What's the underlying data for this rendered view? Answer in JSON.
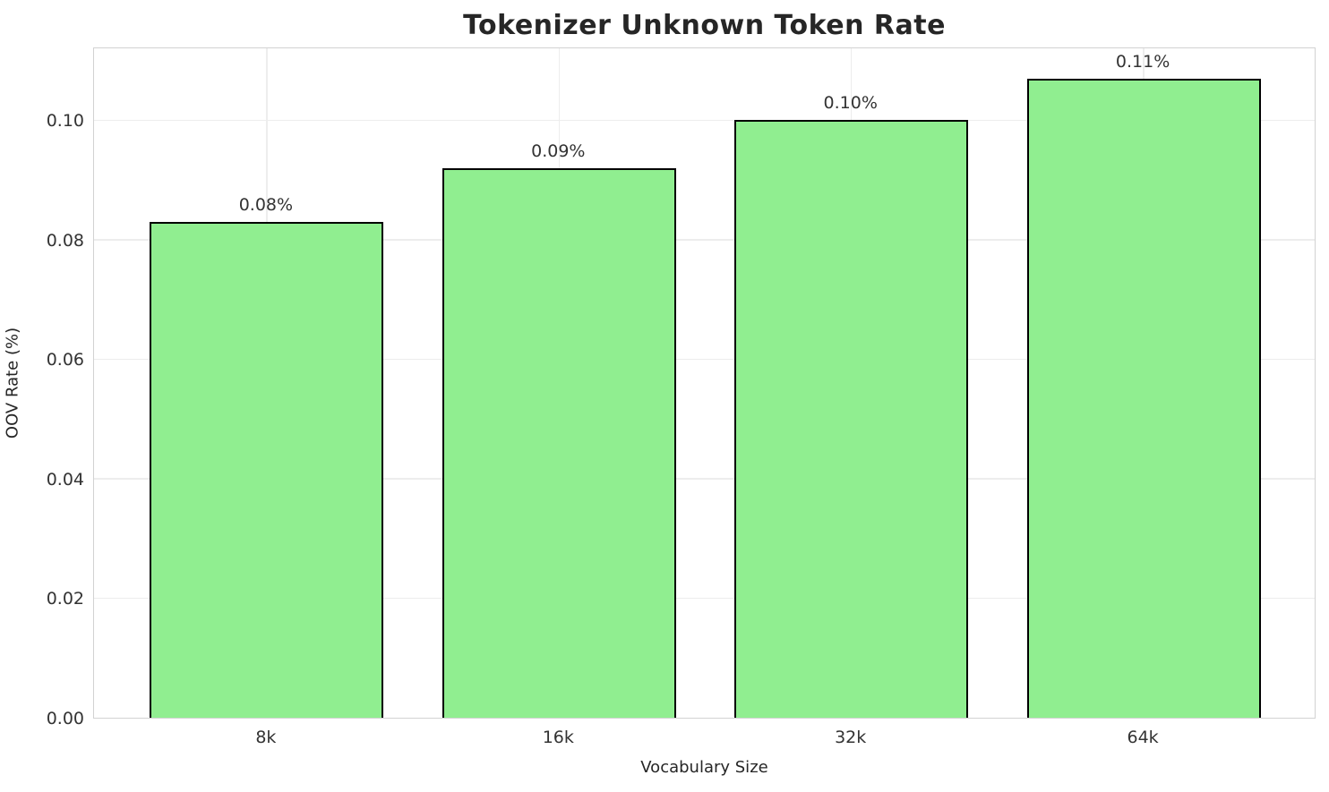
{
  "chart_data": {
    "type": "bar",
    "title": "Tokenizer Unknown Token Rate",
    "xlabel": "Vocabulary Size",
    "ylabel": "OOV Rate (%)",
    "categories": [
      "8k",
      "16k",
      "32k",
      "64k"
    ],
    "values": [
      0.083,
      0.092,
      0.1,
      0.107
    ],
    "value_labels": [
      "0.08%",
      "0.09%",
      "0.10%",
      "0.11%"
    ],
    "yticks": [
      "0.00",
      "0.02",
      "0.04",
      "0.06",
      "0.08",
      "0.10"
    ],
    "ytick_values": [
      0.0,
      0.02,
      0.04,
      0.06,
      0.08,
      0.1
    ],
    "ylim": [
      0,
      0.11235
    ],
    "xlim": [
      -0.591,
      3.591
    ],
    "bar_width_units": 0.8,
    "grid": "on",
    "legend": "none",
    "bar_fill_color": "#90EE90",
    "bar_edge_color": "#000000",
    "grid_color": "#ededed",
    "spine_color": "#d2d2d2",
    "text_color": "#262626",
    "tick_color": "#333333",
    "background_color": "#ffffff"
  }
}
